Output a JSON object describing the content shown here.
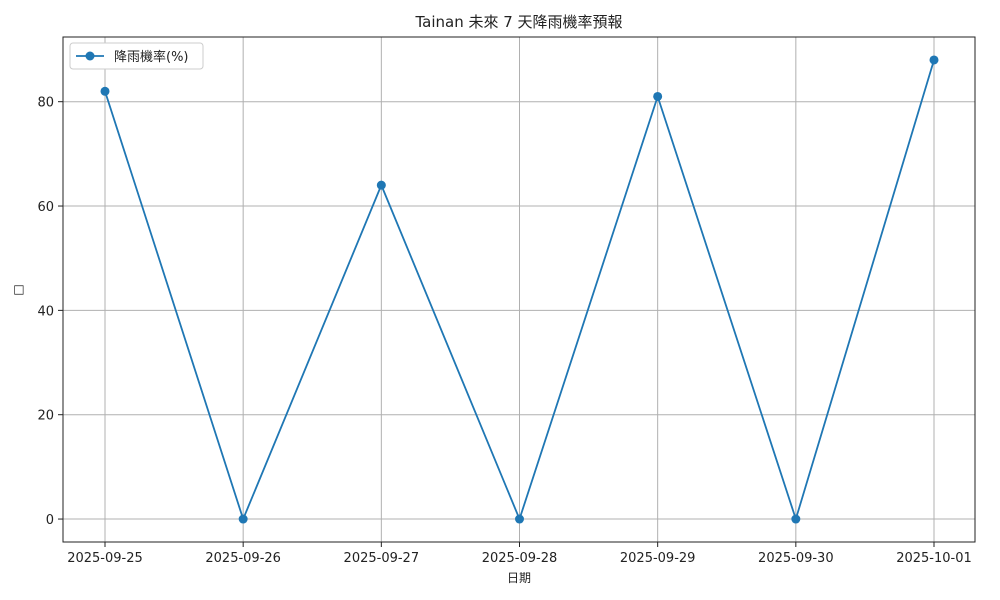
{
  "chart_data": {
    "type": "line",
    "title": "Tainan 未來 7 天降雨機率預報",
    "xlabel": "日期",
    "ylabel": "□",
    "categories": [
      "2025-09-25",
      "2025-09-26",
      "2025-09-27",
      "2025-09-28",
      "2025-09-29",
      "2025-09-30",
      "2025-10-01"
    ],
    "series": [
      {
        "name": "降雨機率(%)",
        "values": [
          82,
          0,
          64,
          0,
          81,
          0,
          88
        ],
        "color": "#1f77b4",
        "marker": "circle"
      }
    ],
    "ylim": [
      -4.4,
      92.4
    ],
    "yticks": [
      0,
      20,
      40,
      60,
      80
    ],
    "grid": true,
    "legend_position": "top-left"
  }
}
